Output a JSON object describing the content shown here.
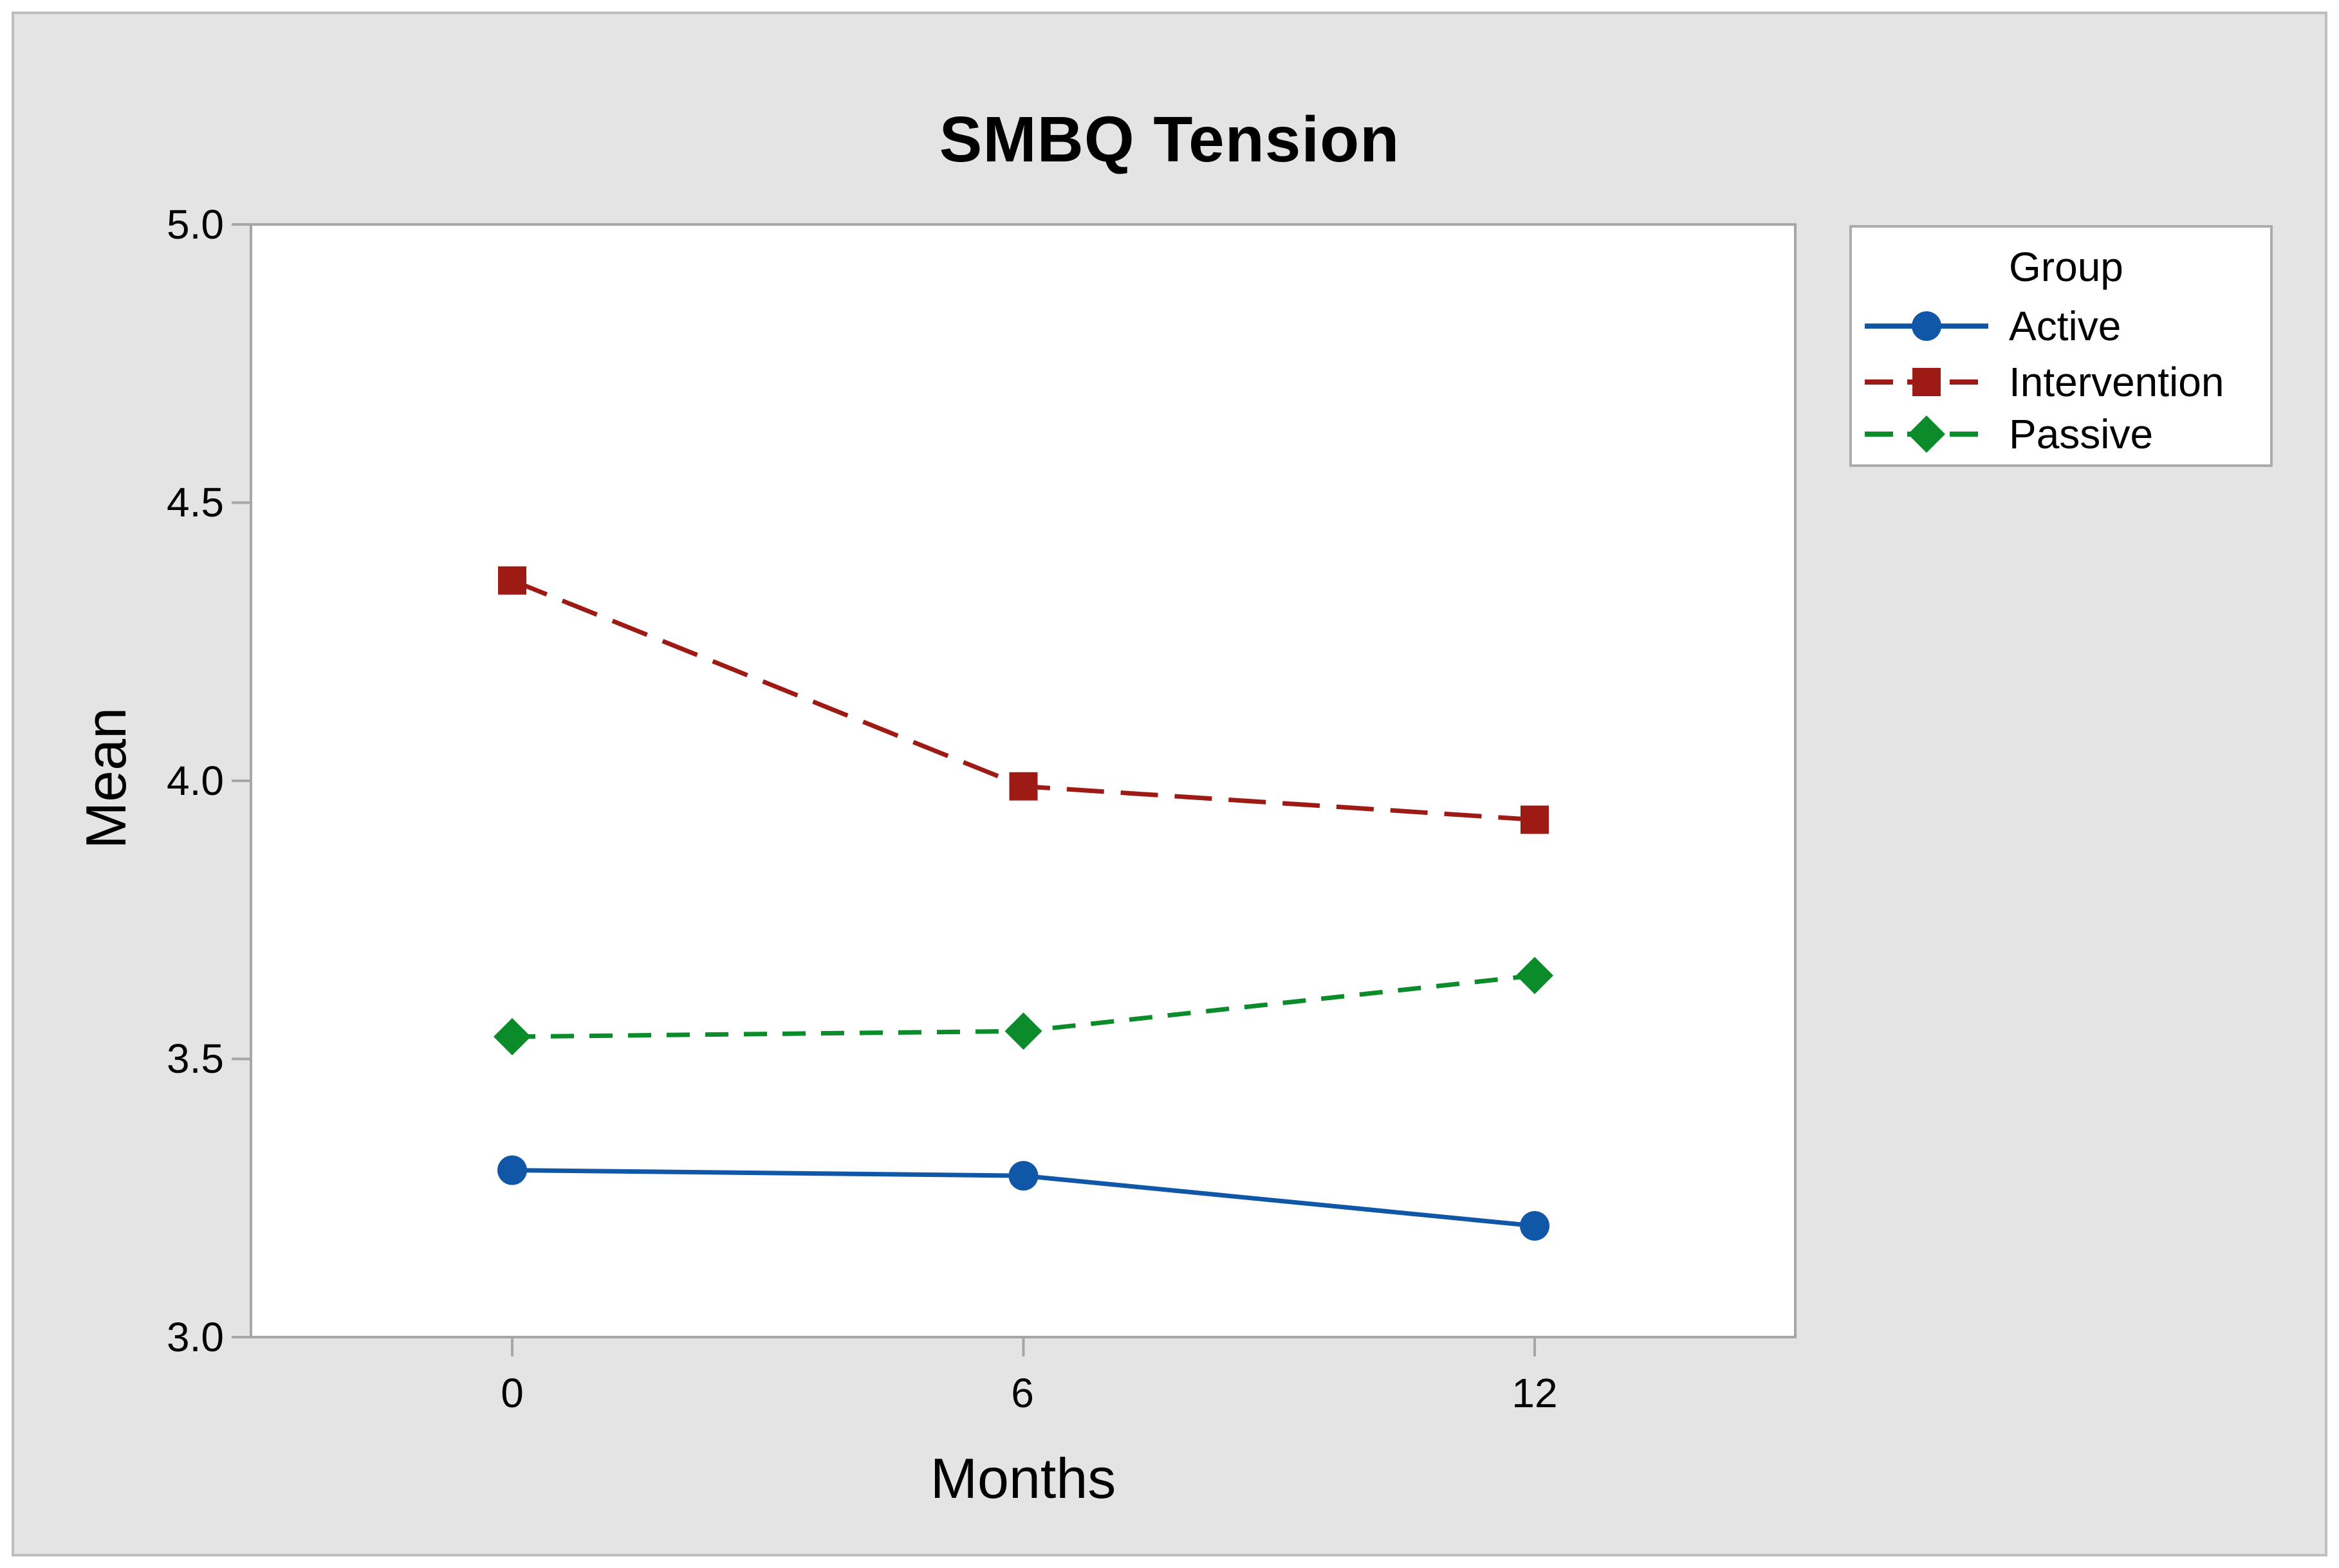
{
  "chart_data": {
    "type": "line",
    "title": "SMBQ Tension",
    "xlabel": "Months",
    "ylabel": "Mean",
    "x": [
      0,
      6,
      12
    ],
    "xtick_labels": [
      "0",
      "6",
      "12"
    ],
    "ylim": [
      3.0,
      5.0
    ],
    "yticks": [
      5.0,
      4.5,
      4.0,
      3.5,
      3.0
    ],
    "ytick_labels": [
      "5.0",
      "4.5",
      "4.0",
      "3.5",
      "3.0"
    ],
    "grid": false,
    "legend": {
      "title": "Group",
      "position": "right"
    },
    "series": [
      {
        "name": "Active",
        "values": [
          3.3,
          3.29,
          3.2
        ],
        "color": "#1057A8",
        "marker": "circle",
        "line_style": "solid"
      },
      {
        "name": "Intervention",
        "values": [
          4.36,
          3.99,
          3.93
        ],
        "color": "#9E1B15",
        "marker": "square",
        "line_style": "dashed"
      },
      {
        "name": "Passive",
        "values": [
          3.54,
          3.55,
          3.65
        ],
        "color": "#0C8B2A",
        "marker": "diamond",
        "line_style": "dashed-short"
      }
    ]
  },
  "colors": {
    "canvas_bg": "#E4E4E4",
    "plot_bg": "#FFFFFF",
    "axis": "#A6A6A6",
    "outer_border": "#BEBEBE",
    "legend_border": "#ABABAB",
    "text": "#000000"
  }
}
